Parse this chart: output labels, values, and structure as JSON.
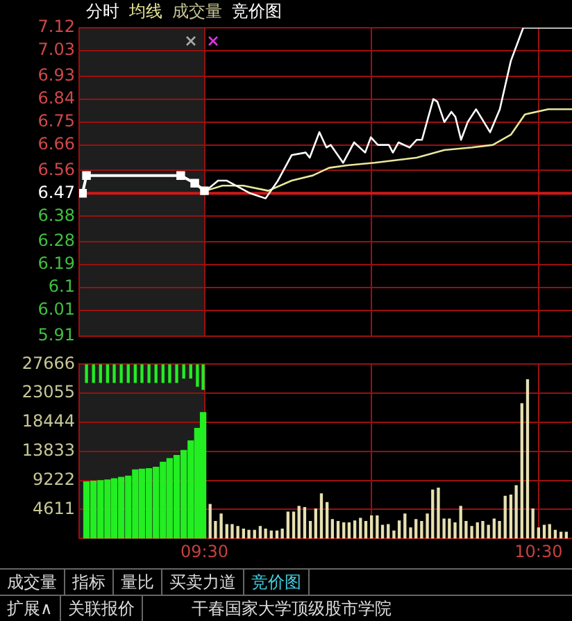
{
  "chart_data": [
    {
      "type": "line",
      "legend": "top left",
      "annotations": [
        "成交量",
        "竞价图"
      ],
      "xlim": [
        9.125,
        10.6
      ],
      "xticks": [
        {
          "value": 9.5,
          "label": null
        },
        {
          "value": 10,
          "label": null
        },
        {
          "value": 10.5,
          "label": null
        }
      ],
      "ylim": [
        5.91,
        7.12
      ],
      "yticks": [
        5.91,
        6.01,
        6.1,
        6.19,
        6.28,
        6.38,
        6.47,
        6.56,
        6.66,
        6.75,
        6.84,
        6.93,
        7.03,
        7.12
      ],
      "tick_labels": "y",
      "grid": true,
      "marker": "none",
      "bands": [
        {
          "axis": "x",
          "from": 9.125,
          "to": 9.5,
          "color": "#1e1e1e"
        }
      ],
      "ref_lines": [
        {
          "axis": "y",
          "value": 6.47,
          "color": "#d01818"
        }
      ],
      "series": [
        {
          "color": "#ffffff",
          "marker": "square",
          "x": [
            9.135,
            9.147,
            9.429,
            9.471,
            9.5
          ],
          "values": [
            6.47,
            6.54,
            6.54,
            6.51,
            6.48
          ]
        },
        {
          "name": "分时",
          "color": "#ffffff",
          "x": [
            9.504,
            9.541,
            9.566,
            9.595,
            9.637,
            9.683,
            9.72,
            9.761,
            9.803,
            9.815,
            9.844,
            9.865,
            9.878,
            9.915,
            9.948,
            9.981,
            9.998,
            10.019,
            10.052,
            10.064,
            10.081,
            10.114,
            10.135,
            10.151,
            10.185,
            10.197,
            10.218,
            10.239,
            10.251,
            10.268,
            10.288,
            10.313,
            10.355,
            10.384,
            10.417,
            10.454,
            10.6
          ],
          "values": [
            6.48,
            6.52,
            6.52,
            6.5,
            6.47,
            6.45,
            6.52,
            6.62,
            6.63,
            6.61,
            6.71,
            6.65,
            6.66,
            6.59,
            6.67,
            6.63,
            6.69,
            6.66,
            6.66,
            6.63,
            6.67,
            6.65,
            6.68,
            6.68,
            6.84,
            6.83,
            6.75,
            6.79,
            6.77,
            6.68,
            6.75,
            6.8,
            6.71,
            6.8,
            6.99,
            7.12,
            7.12
          ]
        },
        {
          "name": "均线",
          "color": "#e8e89a",
          "x": [
            9.504,
            9.554,
            9.616,
            9.691,
            9.761,
            9.824,
            9.873,
            9.927,
            10.01,
            10.135,
            10.218,
            10.301,
            10.363,
            10.417,
            10.459,
            10.529,
            10.6
          ],
          "values": [
            6.48,
            6.5,
            6.5,
            6.48,
            6.52,
            6.54,
            6.57,
            6.58,
            6.59,
            6.61,
            6.64,
            6.65,
            6.66,
            6.7,
            6.78,
            6.8,
            6.8
          ]
        }
      ]
    },
    {
      "type": "bar",
      "xlim": [
        9.125,
        10.6
      ],
      "xticks": [
        {
          "value": 9.5,
          "label": "09:30"
        },
        {
          "value": 10,
          "label": null
        },
        {
          "value": 10.5,
          "label": "10:30"
        }
      ],
      "ylim": [
        0,
        27666
      ],
      "yticks": [
        4611,
        9222,
        13833,
        18444,
        23055,
        27666
      ],
      "grid": true,
      "bands": [
        {
          "axis": "x",
          "from": 9.125,
          "to": 9.5,
          "color": "#1e1e1e"
        }
      ],
      "series": [
        {
          "color": "#22ee22",
          "x": [
            9.147,
            9.168,
            9.189,
            9.21,
            9.23,
            9.251,
            9.272,
            9.293,
            9.313,
            9.334,
            9.355,
            9.376,
            9.396,
            9.417,
            9.438,
            9.459,
            9.479,
            9.496
          ],
          "values": [
            9000,
            9100,
            9200,
            9300,
            9500,
            9700,
            9900,
            10900,
            11000,
            11100,
            11300,
            12100,
            12700,
            13200,
            14000,
            15500,
            17500,
            20000
          ]
        },
        {
          "color": "#22ee22",
          "x": [
            9.147,
            9.168,
            9.189,
            9.21,
            9.23,
            9.251,
            9.272,
            9.293,
            9.313,
            9.334,
            9.355,
            9.376,
            9.396,
            9.417,
            9.438,
            9.459,
            9.479,
            9.496
          ],
          "base": [
            24766,
            24766,
            24766,
            24766,
            24766,
            24766,
            24766,
            24766,
            24766,
            24766,
            24766,
            24766,
            24766,
            24766,
            25466,
            25466,
            24166,
            23666
          ],
          "values": [
            2900,
            2900,
            2900,
            2900,
            2900,
            2900,
            2900,
            2900,
            2900,
            2900,
            2900,
            2900,
            2900,
            2900,
            2200,
            2200,
            3500,
            4000
          ]
        },
        {
          "color": "#e6dfb0",
          "x": [
            9.517,
            9.533,
            9.55,
            9.567,
            9.583,
            9.6,
            9.617,
            9.633,
            9.65,
            9.667,
            9.683,
            9.7,
            9.717,
            9.733,
            9.75,
            9.767,
            9.783,
            9.8,
            9.817,
            9.833,
            9.85,
            9.867,
            9.883,
            9.9,
            9.917,
            9.933,
            9.95,
            9.967,
            9.983,
            10,
            10.017,
            10.033,
            10.05,
            10.067,
            10.083,
            10.1,
            10.117,
            10.133,
            10.15,
            10.167,
            10.183,
            10.2,
            10.217,
            10.233,
            10.25,
            10.267,
            10.283,
            10.3,
            10.317,
            10.333,
            10.35,
            10.367,
            10.383,
            10.4,
            10.417,
            10.433,
            10.45,
            10.467,
            10.483,
            10.5,
            10.517,
            10.533,
            10.55,
            10.567,
            10.583
          ],
          "values": [
            5400,
            2700,
            3900,
            2200,
            2200,
            1900,
            1500,
            1300,
            1300,
            1900,
            1500,
            1200,
            1200,
            1500,
            4200,
            4200,
            5100,
            4900,
            2700,
            4700,
            7100,
            5700,
            3000,
            2700,
            2500,
            2500,
            2800,
            3200,
            2700,
            3600,
            3600,
            2100,
            2200,
            1200,
            2800,
            3900,
            1700,
            3000,
            2700,
            3900,
            7700,
            8000,
            3100,
            3100,
            2500,
            5100,
            2700,
            1900,
            2500,
            2700,
            2100,
            3100,
            2700,
            6700,
            6900,
            8400,
            21400,
            25200,
            4700,
            1700,
            2100,
            2200,
            1300,
            1000,
            1000
          ]
        }
      ]
    },
    {
      "type": "other",
      "annotations": [
        "成交量",
        "指标",
        "量比",
        "买卖力道",
        "竞价图",
        "扩展∧",
        "关联报价",
        "干春国家大学顶级股市学院"
      ]
    }
  ]
}
